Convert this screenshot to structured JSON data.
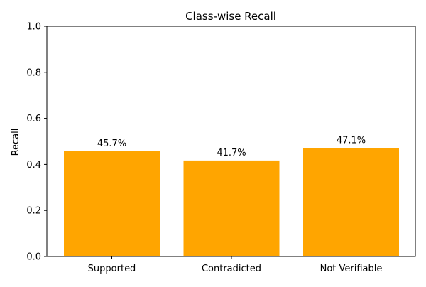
{
  "chart_data": {
    "type": "bar",
    "title": "Class-wise Recall",
    "xlabel": "",
    "ylabel": "Recall",
    "categories": [
      "Supported",
      "Contradicted",
      "Not Verifiable"
    ],
    "values": [
      0.457,
      0.417,
      0.471
    ],
    "data_labels": [
      "45.7%",
      "41.7%",
      "47.1%"
    ],
    "ylim": [
      0,
      1
    ],
    "yticks": [
      0.0,
      0.2,
      0.4,
      0.6,
      0.8,
      1.0
    ],
    "ytick_labels": [
      "0.0",
      "0.2",
      "0.4",
      "0.6",
      "0.8",
      "1.0"
    ],
    "grid": false,
    "legend": "none",
    "colors": {
      "bar": "#ffa500",
      "axes": "#000000"
    }
  }
}
